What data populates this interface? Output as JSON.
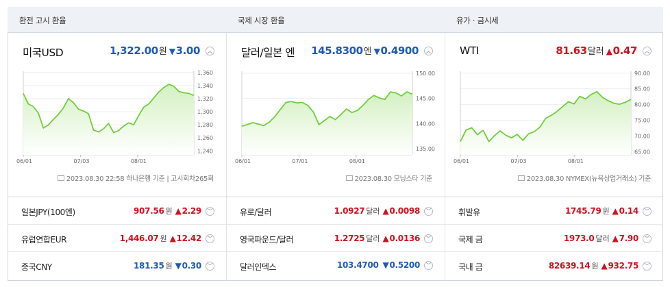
{
  "colors": {
    "up": "#d2101e",
    "down": "#1f5bb5",
    "line": "#6fcf3c",
    "fill_top": "#d3f0c1",
    "fill_bottom": "#ffffff"
  },
  "panels": [
    {
      "header": "환전 고시 환율",
      "main": {
        "name": "미국USD",
        "value": "1,322.00",
        "unit": "원",
        "change": "3.00",
        "direction": "down",
        "arrow": "▼",
        "expand_icon": "chevron-up-icon"
      },
      "source": "2023.08.30 22:58 하나은행 기준 | 고시회차265회",
      "chart_data": {
        "type": "area",
        "x_ticks": [
          "06/01",
          "07/03",
          "08/01"
        ],
        "y_ticks": [
          "1,360",
          "1,340",
          "1,320",
          "1,300",
          "1,280",
          "1,260",
          "1,240"
        ],
        "ylim": [
          1234,
          1362
        ],
        "y": [
          1328,
          1312,
          1308,
          1298,
          1275,
          1280,
          1288,
          1296,
          1306,
          1320,
          1314,
          1304,
          1301,
          1297,
          1272,
          1269,
          1274,
          1282,
          1268,
          1271,
          1278,
          1283,
          1280,
          1294,
          1307,
          1312,
          1321,
          1330,
          1337,
          1342,
          1339,
          1331,
          1329,
          1328,
          1325
        ]
      },
      "items": [
        {
          "name": "일본JPY(100엔)",
          "value": "907.56",
          "unit": "원",
          "arrow": "▲",
          "change": "2.29",
          "direction": "up"
        },
        {
          "name": "유럽연합EUR",
          "value": "1,446.07",
          "unit": "원",
          "arrow": "▲",
          "change": "12.42",
          "direction": "up"
        },
        {
          "name": "중국CNY",
          "value": "181.35",
          "unit": "원",
          "arrow": "▼",
          "change": "0.30",
          "direction": "down"
        }
      ]
    },
    {
      "header": "국제 시장 환율",
      "main": {
        "name": "달러/일본 엔",
        "value": "145.8300",
        "unit": "엔",
        "change": "0.4900",
        "direction": "down",
        "arrow": "▼",
        "expand_icon": "chevron-up-icon"
      },
      "source": "2023.08.30 모닝스타 기준",
      "chart_data": {
        "type": "area",
        "x_ticks": [
          "06/01",
          "07/01",
          "08/01"
        ],
        "y_ticks": [
          "150.00",
          "145.00",
          "140.00",
          "135.00"
        ],
        "ylim": [
          133.8,
          150.4
        ],
        "y": [
          139.5,
          139.8,
          140.2,
          139.9,
          139.6,
          140.3,
          141.4,
          142.8,
          144.2,
          144.4,
          144.1,
          144.2,
          143.6,
          142.3,
          139.8,
          140.6,
          141.4,
          140.8,
          141.8,
          142.9,
          142.2,
          142.6,
          143.6,
          144.8,
          145.6,
          145.1,
          144.8,
          146.3,
          146.1,
          145.5,
          146.3,
          145.83
        ]
      },
      "items": [
        {
          "name": "유로/달러",
          "value": "1.0927",
          "unit": "달러",
          "arrow": "▲",
          "change": "0.0098",
          "direction": "up"
        },
        {
          "name": "영국파운드/달러",
          "value": "1.2725",
          "unit": "달러",
          "arrow": "▲",
          "change": "0.0136",
          "direction": "up"
        },
        {
          "name": "달러인덱스",
          "value": "103.4700",
          "unit": "",
          "arrow": "▼",
          "change": "0.5200",
          "direction": "down"
        }
      ]
    },
    {
      "header": "유가 · 금시세",
      "main": {
        "name": "WTI",
        "value": "81.63",
        "unit": "달러",
        "change": "0.47",
        "direction": "up",
        "arrow": "▲",
        "expand_icon": "chevron-up-icon"
      },
      "source": "2023.08.30 NYMEX(뉴욕상업거래소) 기준",
      "chart_data": {
        "type": "area",
        "x_ticks": [
          "06/01",
          "07/03",
          "08/01"
        ],
        "y_ticks": [
          "90.00",
          "85.00",
          "80.00",
          "75.00",
          "70.00",
          "65.00"
        ],
        "ylim": [
          64,
          90.6
        ],
        "y": [
          68.2,
          71.9,
          72.6,
          70.4,
          71.8,
          68.2,
          70.1,
          71.6,
          70.2,
          69.4,
          70.5,
          68.6,
          70.7,
          71.4,
          72.8,
          75.6,
          76.6,
          77.8,
          79.4,
          80.9,
          80.2,
          82.6,
          81.8,
          83.2,
          84.1,
          82.3,
          81.2,
          80.4,
          80.1,
          80.7,
          81.63
        ]
      },
      "items": [
        {
          "name": "휘발유",
          "value": "1745.79",
          "unit": "원",
          "arrow": "▲",
          "change": "0.14",
          "direction": "up"
        },
        {
          "name": "국제 금",
          "value": "1973.0",
          "unit": "달러",
          "arrow": "▲",
          "change": "7.90",
          "direction": "up"
        },
        {
          "name": "국내 금",
          "value": "82639.14",
          "unit": "원",
          "arrow": "▲",
          "change": "932.75",
          "direction": "up"
        }
      ]
    }
  ]
}
